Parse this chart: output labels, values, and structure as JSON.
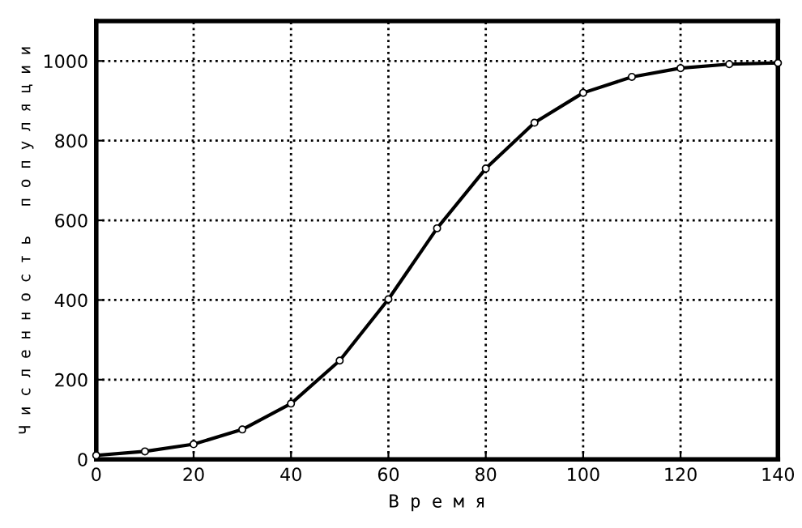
{
  "chart_data": {
    "type": "line",
    "xlabel": "В р е м я",
    "ylabel": "Ч и с л е н н о с т ь   п о п у л я ц и и",
    "x": [
      0,
      10,
      20,
      30,
      40,
      50,
      60,
      70,
      80,
      90,
      100,
      110,
      120,
      130,
      140
    ],
    "series": [
      {
        "color": "#000000",
        "values": [
          10,
          20,
          38,
          75,
          140,
          248,
          402,
          580,
          730,
          845,
          920,
          960,
          982,
          992,
          995
        ]
      }
    ],
    "xlim": [
      0,
      140
    ],
    "xticks": [
      0,
      20,
      40,
      60,
      80,
      100,
      120,
      140
    ],
    "ylim": [
      0,
      1100
    ],
    "yticks": [
      0,
      200,
      400,
      600,
      800,
      1000
    ],
    "grid": true,
    "marker": "circle",
    "line_style": "solid"
  }
}
